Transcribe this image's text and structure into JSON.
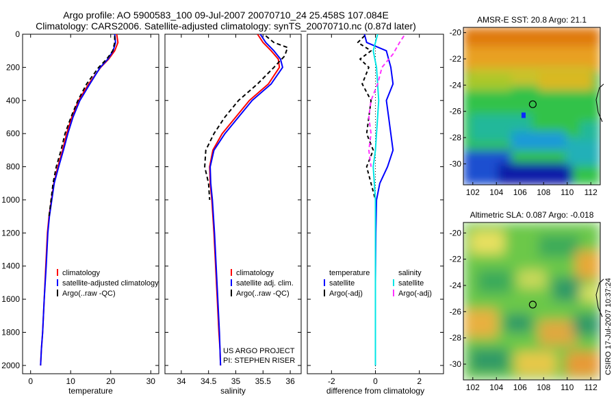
{
  "figure": {
    "title_line1": "Argo profile: AO 5900583_100 09-Jul-2007 20070710_24 25.458S 107.084E",
    "title_line2": "Climatology: CARS2006. Satellite-adjusted climatology: synTS_20070710.nc (0.87d later)",
    "credit": "CSIRO 17-Jul-2007 10:37:24",
    "project_line1": "US ARGO PROJECT",
    "project_line2": "PI: STEPHEN RISER"
  },
  "colors": {
    "climatology": "#ff0000",
    "satellite": "#0000ff",
    "argo": "#000000",
    "diff_satellite": "#00e5e5",
    "diff_argo": "#ff33ff",
    "marker": "#000000"
  },
  "chart_data": [
    {
      "type": "line",
      "id": "temperature",
      "xlabel": "temperature",
      "xlim": [
        -2,
        32
      ],
      "xticks": [
        0,
        10,
        20,
        30
      ],
      "ylim": [
        2050,
        0
      ],
      "yticks": [
        0,
        200,
        400,
        600,
        800,
        1000,
        1200,
        1400,
        1600,
        1800,
        2000
      ],
      "legend": [
        "climatology",
        "satellite-adjusted climatology",
        "Argo(..raw -QC)"
      ],
      "series": [
        {
          "name": "climatology",
          "color": "#ff0000",
          "dash": "",
          "x": [
            21.5,
            21.8,
            21.0,
            19.5,
            17.5,
            14.5,
            12.0,
            10.3,
            9.0,
            8.0,
            6.8,
            5.8,
            5.2,
            4.6,
            4.2,
            3.8,
            3.4,
            3.0,
            2.7,
            2.5
          ],
          "y": [
            0,
            50,
            100,
            150,
            200,
            300,
            400,
            500,
            600,
            700,
            800,
            900,
            1000,
            1100,
            1200,
            1400,
            1600,
            1800,
            1900,
            2000
          ]
        },
        {
          "name": "satellite-adjusted climatology",
          "color": "#0000ff",
          "dash": "",
          "x": [
            21.0,
            21.2,
            20.6,
            19.3,
            17.4,
            14.8,
            12.3,
            10.6,
            9.3,
            8.2,
            7.0,
            5.9,
            5.3,
            4.7,
            4.3,
            3.9,
            3.4,
            3.0,
            2.7,
            2.5
          ],
          "y": [
            0,
            50,
            100,
            150,
            200,
            300,
            400,
            500,
            600,
            700,
            800,
            900,
            1000,
            1100,
            1200,
            1400,
            1600,
            1800,
            1900,
            2000
          ]
        },
        {
          "name": "Argo(..raw -QC)",
          "color": "#000000",
          "dash": "6,4",
          "x": [
            21.0,
            21.0,
            20.5,
            19.0,
            17.0,
            14.0,
            11.8,
            10.1,
            8.6,
            7.6,
            6.4,
            5.6,
            5.1,
            4.6
          ],
          "y": [
            10,
            50,
            100,
            150,
            200,
            300,
            400,
            500,
            600,
            700,
            800,
            900,
            1000,
            1100
          ]
        }
      ]
    },
    {
      "type": "line",
      "id": "salinity",
      "xlabel": "salinity",
      "xlim": [
        33.7,
        36.2
      ],
      "xticks": [
        34,
        34.5,
        35,
        35.5,
        36
      ],
      "ylim": [
        2050,
        0
      ],
      "legend": [
        "climatology",
        "satellite adj. clim.",
        "Argo(..raw -QC)"
      ],
      "series": [
        {
          "name": "climatology",
          "color": "#ff0000",
          "dash": "",
          "x": [
            35.4,
            35.5,
            35.65,
            35.78,
            35.8,
            35.6,
            35.25,
            35.0,
            34.75,
            34.58,
            34.52,
            34.53,
            34.56,
            34.6,
            34.63,
            34.66,
            34.69,
            34.71,
            34.72
          ],
          "y": [
            0,
            50,
            100,
            150,
            200,
            300,
            400,
            500,
            600,
            700,
            800,
            900,
            1000,
            1200,
            1400,
            1600,
            1800,
            1900,
            2000
          ]
        },
        {
          "name": "satellite adj. clim.",
          "color": "#0000ff",
          "dash": "",
          "x": [
            35.45,
            35.55,
            35.7,
            35.82,
            35.86,
            35.65,
            35.3,
            35.05,
            34.8,
            34.6,
            34.53,
            34.54,
            34.57,
            34.61,
            34.64,
            34.67,
            34.7,
            34.71,
            34.72
          ],
          "y": [
            0,
            50,
            100,
            150,
            200,
            300,
            400,
            500,
            600,
            700,
            800,
            900,
            1000,
            1200,
            1400,
            1600,
            1800,
            1900,
            2000
          ]
        },
        {
          "name": "Argo(..raw -QC)",
          "color": "#000000",
          "dash": "6,4",
          "x": [
            35.55,
            35.7,
            35.95,
            35.9,
            35.7,
            35.4,
            35.05,
            34.8,
            34.6,
            34.45,
            34.43,
            34.5,
            34.52
          ],
          "y": [
            10,
            50,
            80,
            130,
            200,
            300,
            400,
            500,
            600,
            700,
            800,
            900,
            1000
          ]
        }
      ]
    },
    {
      "type": "line",
      "id": "difference",
      "xlabel": "difference from climatology",
      "xlim": [
        -3.1,
        3.1
      ],
      "xticks": [
        -2,
        0,
        2
      ],
      "ylim": [
        2050,
        0
      ],
      "legend_temperature": [
        "temperature",
        "satellite",
        "Argo(-adj)"
      ],
      "legend_salinity": [
        "salinity",
        "satellite",
        "Argo(-adj)"
      ],
      "series": [
        {
          "name": "temperature satellite",
          "color": "#0000ff",
          "dash": "",
          "x": [
            -0.5,
            -0.4,
            0.5,
            0.7,
            0.8,
            0.5,
            0.6,
            0.7,
            0.8,
            0.55,
            0.2,
            0.05,
            0.02,
            0.0,
            0.0,
            0.0
          ],
          "y": [
            0,
            50,
            100,
            200,
            300,
            400,
            500,
            600,
            700,
            800,
            900,
            1000,
            1200,
            1500,
            1800,
            2000
          ]
        },
        {
          "name": "temperature Argo(-adj)",
          "color": "#000000",
          "dash": "5,4",
          "x": [
            -0.5,
            -0.8,
            -0.2,
            -0.7,
            -0.3,
            -0.6,
            -0.2,
            -0.3,
            -0.4,
            -0.1,
            -0.4,
            -0.2,
            0.0
          ],
          "y": [
            10,
            50,
            100,
            150,
            200,
            300,
            400,
            500,
            600,
            700,
            800,
            900,
            1000
          ]
        },
        {
          "name": "salinity satellite",
          "color": "#00e5e5",
          "dash": "",
          "x": [
            0.1,
            0.0,
            -0.1,
            0.05,
            0.1,
            0.15,
            0.1,
            0.05,
            0.0,
            -0.1,
            -0.05,
            0.0,
            0.0,
            0.0,
            0.0
          ],
          "y": [
            0,
            50,
            100,
            200,
            300,
            400,
            500,
            600,
            700,
            800,
            900,
            1000,
            1200,
            1600,
            2000
          ]
        },
        {
          "name": "salinity Argo(-adj)",
          "color": "#ff33ff",
          "dash": "6,4",
          "x": [
            1.3,
            1.1,
            0.8,
            0.3,
            0.1,
            -0.2,
            -0.3,
            -0.2,
            -0.3,
            -0.2
          ],
          "y": [
            10,
            50,
            120,
            200,
            300,
            400,
            500,
            600,
            700,
            800
          ]
        }
      ]
    },
    {
      "type": "heatmap",
      "id": "sst_map",
      "title": "AMSR-E SST: 20.8 Argo: 21.1",
      "xlim": [
        101.2,
        112.8
      ],
      "ylim": [
        -31.6,
        -19.6
      ],
      "xticks": [
        102,
        104,
        106,
        108,
        110,
        112
      ],
      "yticks": [
        -20,
        -22,
        -24,
        -26,
        -28,
        -30
      ],
      "marker": {
        "lon": 107.08,
        "lat": -25.46
      }
    },
    {
      "type": "heatmap",
      "id": "sla_map",
      "title": "Altimetric SLA: 0.087 Argo: -0.018",
      "xlim": [
        101.2,
        112.8
      ],
      "ylim": [
        -31.2,
        -19.2
      ],
      "xticks": [
        102,
        104,
        106,
        108,
        110,
        112
      ],
      "yticks": [
        -20,
        -22,
        -24,
        -26,
        -28,
        -30
      ],
      "marker": {
        "lon": 107.08,
        "lat": -25.46
      }
    }
  ]
}
